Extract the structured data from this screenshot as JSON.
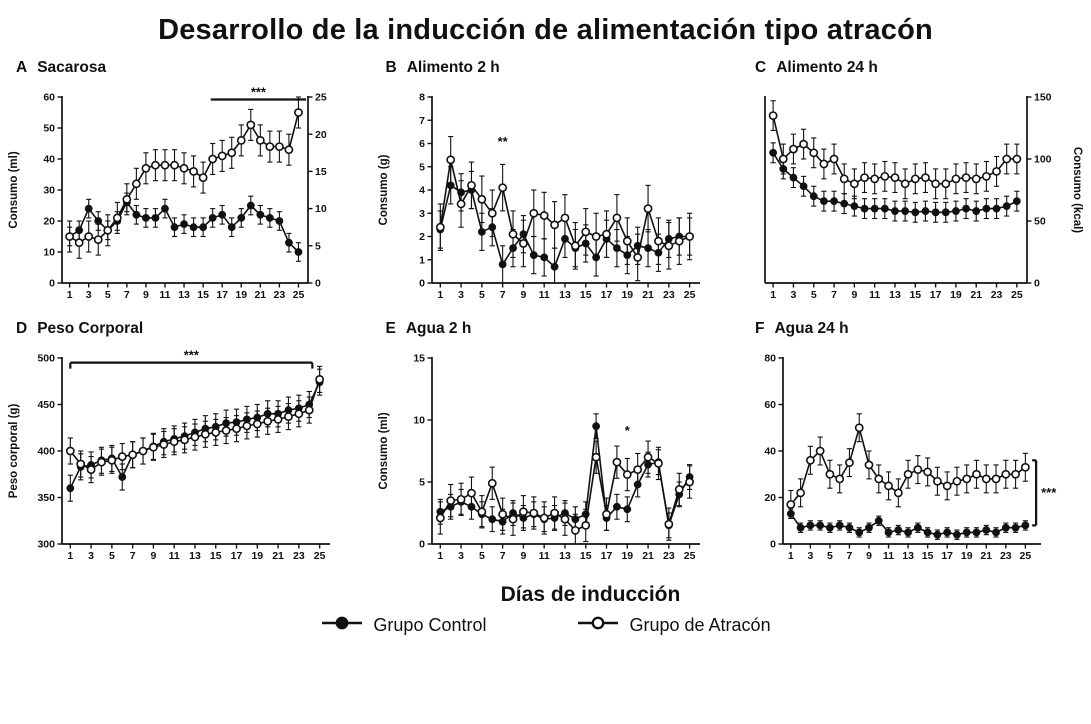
{
  "title": "Desarrollo de la inducción de alimentación tipo atracón",
  "xlabel_shared": "Días de inducción",
  "style": {
    "ink": "#111111",
    "open_fill": "#ffffff",
    "background": "#ffffff"
  },
  "days": [
    1,
    2,
    3,
    4,
    5,
    6,
    7,
    8,
    9,
    10,
    11,
    12,
    13,
    14,
    15,
    16,
    17,
    18,
    19,
    20,
    21,
    22,
    23,
    24,
    25
  ],
  "xticks": [
    1,
    3,
    5,
    7,
    9,
    11,
    13,
    15,
    17,
    19,
    21,
    23,
    25
  ],
  "xlim": [
    0.2,
    26
  ],
  "legend": [
    {
      "label": "Grupo Control",
      "marker": "filled"
    },
    {
      "label": "Grupo de Atracón",
      "marker": "open"
    }
  ],
  "chart_data": [
    {
      "panel": "A",
      "title": "Sacarosa",
      "type": "line",
      "ylabel": "Consumo (ml)",
      "ylim": [
        0,
        60
      ],
      "yticks": [
        0,
        10,
        20,
        30,
        40,
        50,
        60
      ],
      "y2lim": [
        0,
        25
      ],
      "y2ticks": [
        0,
        5,
        10,
        15,
        20,
        25
      ],
      "series": [
        {
          "name": "Grupo Control",
          "marker": "filled",
          "err": 3,
          "values": [
            15,
            17,
            24,
            20,
            17,
            20,
            26,
            22,
            21,
            21,
            24,
            18,
            19,
            18,
            18,
            21,
            22,
            18,
            21,
            25,
            22,
            21,
            20,
            13,
            10
          ]
        },
        {
          "name": "Grupo de Atracón",
          "marker": "open",
          "err": 5,
          "values": [
            15,
            13,
            15,
            14,
            17,
            21,
            27,
            32,
            37,
            38,
            38,
            38,
            37,
            36,
            34,
            40,
            41,
            42,
            46,
            51,
            46,
            44,
            44,
            43,
            55
          ]
        }
      ],
      "annotations": [
        {
          "type": "hline",
          "x1": 15.8,
          "x2": 25.8,
          "y": 59.2,
          "label": "***"
        }
      ]
    },
    {
      "panel": "B",
      "title": "Alimento 2 h",
      "type": "line",
      "ylabel": "Consumo (g)",
      "ylim": [
        0,
        8
      ],
      "yticks": [
        0,
        1,
        2,
        3,
        4,
        5,
        6,
        7,
        8
      ],
      "series": [
        {
          "name": "Grupo Control",
          "marker": "filled",
          "err": 0.8,
          "values": [
            2.3,
            4.2,
            3.9,
            4.0,
            2.2,
            2.4,
            0.8,
            1.5,
            2.1,
            1.2,
            1.1,
            0.7,
            1.9,
            1.5,
            1.7,
            1.1,
            1.9,
            1.5,
            1.2,
            1.6,
            1.5,
            1.3,
            1.9,
            2.0,
            2.0
          ]
        },
        {
          "name": "Grupo de Atracón",
          "marker": "open",
          "err": 1.0,
          "values": [
            2.4,
            5.3,
            3.4,
            4.2,
            3.6,
            3.0,
            4.1,
            2.1,
            1.7,
            3.0,
            2.9,
            2.5,
            2.8,
            1.6,
            2.2,
            2.0,
            2.1,
            2.8,
            1.8,
            1.1,
            3.2,
            1.8,
            1.6,
            1.8,
            2.0
          ]
        }
      ],
      "annotations": [
        {
          "type": "star",
          "x": 7,
          "y": 5.9,
          "label": "**"
        }
      ]
    },
    {
      "panel": "C",
      "title": "Alimento 24 h",
      "type": "line",
      "ylim": [
        0,
        150
      ],
      "y2lim": [
        0,
        150
      ],
      "y2ticks": [
        0,
        50,
        100,
        150
      ],
      "y2label": "Consumo (kcal)",
      "series": [
        {
          "name": "Grupo Control",
          "marker": "filled",
          "err": 8,
          "values": [
            105,
            92,
            85,
            78,
            70,
            66,
            66,
            64,
            62,
            60,
            60,
            60,
            58,
            58,
            57,
            58,
            57,
            57,
            58,
            60,
            58,
            60,
            60,
            62,
            66
          ]
        },
        {
          "name": "Grupo de Atracón",
          "marker": "open",
          "err": 12,
          "values": [
            135,
            100,
            108,
            112,
            105,
            96,
            100,
            84,
            80,
            85,
            84,
            86,
            85,
            80,
            84,
            85,
            80,
            80,
            84,
            85,
            84,
            86,
            90,
            100,
            100
          ]
        }
      ],
      "annotations": []
    },
    {
      "panel": "D",
      "title": "Peso Corporal",
      "type": "line",
      "ylabel": "Peso corporal (g)",
      "ylim": [
        300,
        500
      ],
      "yticks": [
        300,
        350,
        400,
        450,
        500
      ],
      "series": [
        {
          "name": "Grupo Control",
          "marker": "filled",
          "err": 14,
          "values": [
            360,
            383,
            385,
            390,
            392,
            372,
            396,
            400,
            405,
            410,
            413,
            416,
            420,
            424,
            426,
            430,
            431,
            434,
            436,
            440,
            440,
            444,
            446,
            450,
            474
          ]
        },
        {
          "name": "Grupo de Atracón",
          "marker": "open",
          "err": 14,
          "values": [
            400,
            386,
            380,
            388,
            390,
            394,
            396,
            400,
            404,
            407,
            410,
            412,
            415,
            418,
            420,
            422,
            424,
            427,
            429,
            432,
            434,
            437,
            440,
            444,
            477
          ]
        }
      ],
      "annotations": [
        {
          "type": "hline",
          "x1": 1,
          "x2": 24.3,
          "y": 495,
          "label": "***",
          "caps": true
        }
      ]
    },
    {
      "panel": "E",
      "title": "Agua 2 h",
      "type": "line",
      "ylabel": "Consumo (ml)",
      "ylim": [
        0,
        15
      ],
      "yticks": [
        0,
        5,
        10,
        15
      ],
      "series": [
        {
          "name": "Grupo Control",
          "marker": "filled",
          "err": 1.0,
          "values": [
            2.6,
            3.0,
            3.4,
            3.0,
            2.4,
            2.0,
            1.8,
            2.5,
            2.1,
            2.4,
            2.0,
            2.1,
            2.5,
            2.0,
            2.4,
            9.5,
            2.1,
            3.0,
            2.8,
            4.8,
            6.4,
            6.6,
            1.5,
            4.0,
            5.4
          ]
        },
        {
          "name": "Grupo de Atracón",
          "marker": "open",
          "err": 1.3,
          "values": [
            2.1,
            3.5,
            3.6,
            4.1,
            2.6,
            4.9,
            2.4,
            2.0,
            2.6,
            2.5,
            2.1,
            2.5,
            2.0,
            1.1,
            1.5,
            7.0,
            2.4,
            6.6,
            5.6,
            6.0,
            7.0,
            6.5,
            1.6,
            4.4,
            5.0
          ]
        }
      ],
      "annotations": [
        {
          "type": "star",
          "x": 19,
          "y": 8.8,
          "label": "*"
        }
      ]
    },
    {
      "panel": "F",
      "title": "Agua 24 h",
      "type": "line",
      "ylim": [
        0,
        80
      ],
      "yticks": [
        0,
        20,
        40,
        60,
        80
      ],
      "mr": 42,
      "xlim": [
        0.2,
        26.6
      ],
      "series": [
        {
          "name": "Grupo Control",
          "marker": "filled",
          "err": 2,
          "values": [
            13,
            7,
            8,
            8,
            7,
            8,
            7,
            5,
            7,
            10,
            5,
            6,
            5,
            7,
            5,
            4,
            5,
            4,
            5,
            5,
            6,
            5,
            7,
            7,
            8
          ]
        },
        {
          "name": "Grupo de Atracón",
          "marker": "open",
          "err": 6,
          "values": [
            17,
            22,
            36,
            40,
            30,
            28,
            35,
            50,
            34,
            28,
            25,
            22,
            30,
            32,
            31,
            27,
            25,
            27,
            28,
            30,
            28,
            28,
            30,
            30,
            33
          ]
        }
      ],
      "annotations": [
        {
          "type": "vbracket",
          "x": 26.1,
          "y1": 8,
          "y2": 36,
          "label": "***"
        }
      ]
    }
  ]
}
